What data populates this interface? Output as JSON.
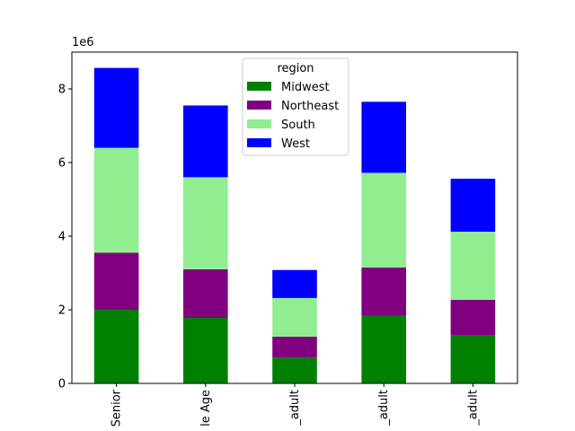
{
  "chart_data": {
    "type": "bar",
    "stacked": true,
    "categories": [
      "Senior",
      "le Age",
      "_adult",
      "_adult",
      "_adult"
    ],
    "series": [
      {
        "name": "Midwest",
        "color": "#008000",
        "values": [
          2000000,
          1780000,
          700000,
          1840000,
          1300000
        ]
      },
      {
        "name": "Northeast",
        "color": "#800080",
        "values": [
          1550000,
          1320000,
          570000,
          1310000,
          970000
        ]
      },
      {
        "name": "South",
        "color": "#90ee90",
        "values": [
          2850000,
          2500000,
          1050000,
          2570000,
          1850000
        ]
      },
      {
        "name": "West",
        "color": "#0000ff",
        "values": [
          2170000,
          1950000,
          760000,
          1930000,
          1440000
        ]
      }
    ],
    "ylim": [
      0,
      9000000
    ],
    "yticks": [
      0,
      2000000,
      4000000,
      6000000,
      8000000
    ],
    "ytick_labels": [
      "0",
      "2",
      "4",
      "6",
      "8"
    ],
    "offset_text": "1e6",
    "legend": {
      "title": "region",
      "placement": "top-center"
    },
    "grid": false
  }
}
